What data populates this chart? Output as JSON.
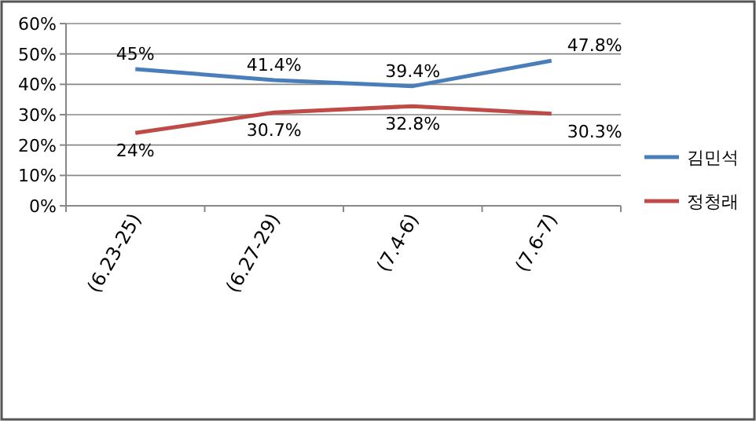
{
  "chart_data": {
    "type": "line",
    "categories": [
      "(6.23-25)",
      "(6.27-29)",
      "(7.4-6)",
      "(7.6-7)"
    ],
    "series": [
      {
        "name": "김민석",
        "color": "#4a7ebb",
        "values": [
          45,
          41.4,
          39.4,
          47.8
        ],
        "value_labels": [
          "45%",
          "41.4%",
          "39.4%",
          "47.8%"
        ]
      },
      {
        "name": "정청래",
        "color": "#be4b48",
        "values": [
          24,
          30.7,
          32.8,
          30.3
        ],
        "value_labels": [
          "24%",
          "30.7%",
          "32.8%",
          "30.3%"
        ]
      }
    ],
    "ylim": [
      0,
      60
    ],
    "yticks": [
      {
        "value": 0,
        "label": "0%"
      },
      {
        "value": 10,
        "label": "10%"
      },
      {
        "value": 20,
        "label": "20%"
      },
      {
        "value": 30,
        "label": "30%"
      },
      {
        "value": 40,
        "label": "40%"
      },
      {
        "value": 50,
        "label": "50%"
      },
      {
        "value": 60,
        "label": "60%"
      }
    ],
    "grid": "y",
    "legend": "right",
    "marker": "none",
    "line_style": "solid"
  }
}
